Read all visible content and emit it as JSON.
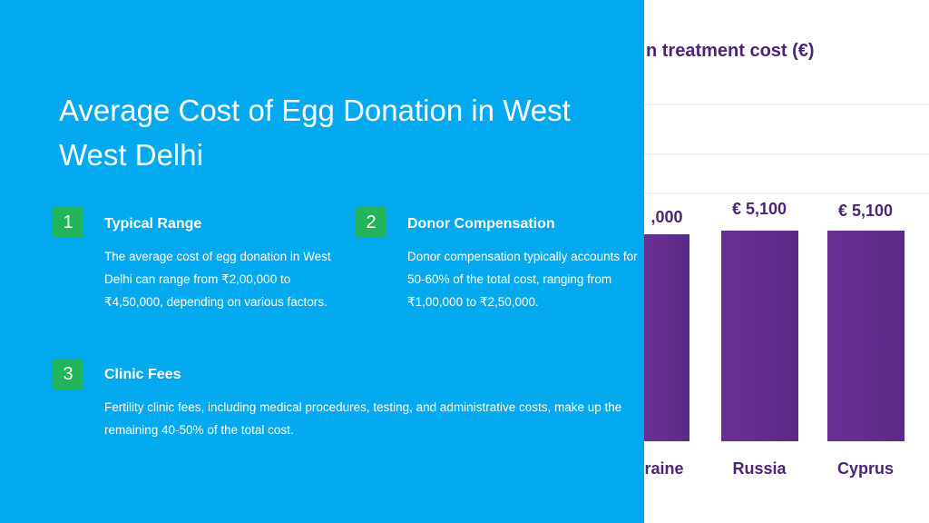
{
  "slide": {
    "title_lines": [
      "Average Cost of Egg Donation in West",
      "West Delhi"
    ],
    "items": [
      {
        "number": "1",
        "heading": "Typical Range",
        "text": "The average cost of egg donation in West Delhi can range from ₹2,00,000 to ₹4,50,000, depending on various factors."
      },
      {
        "number": "2",
        "heading": "Donor Compensation",
        "text": "Donor compensation typically accounts for 50-60% of the total cost, ranging from ₹1,00,000 to ₹2,50,000."
      },
      {
        "number": "3",
        "heading": "Clinic Fees",
        "text": "Fertility clinic fees, including medical procedures, testing, and administrative costs, make up the remaining 40-50% of the total cost."
      }
    ]
  },
  "image_panel": {
    "title": "n treatment cost (€)",
    "bars": [
      {
        "label": "raine",
        "value_label": ",000"
      },
      {
        "label": "Russia",
        "value_label": "€ 5,100"
      },
      {
        "label": "Cyprus",
        "value_label": "€ 5,100"
      }
    ]
  }
}
